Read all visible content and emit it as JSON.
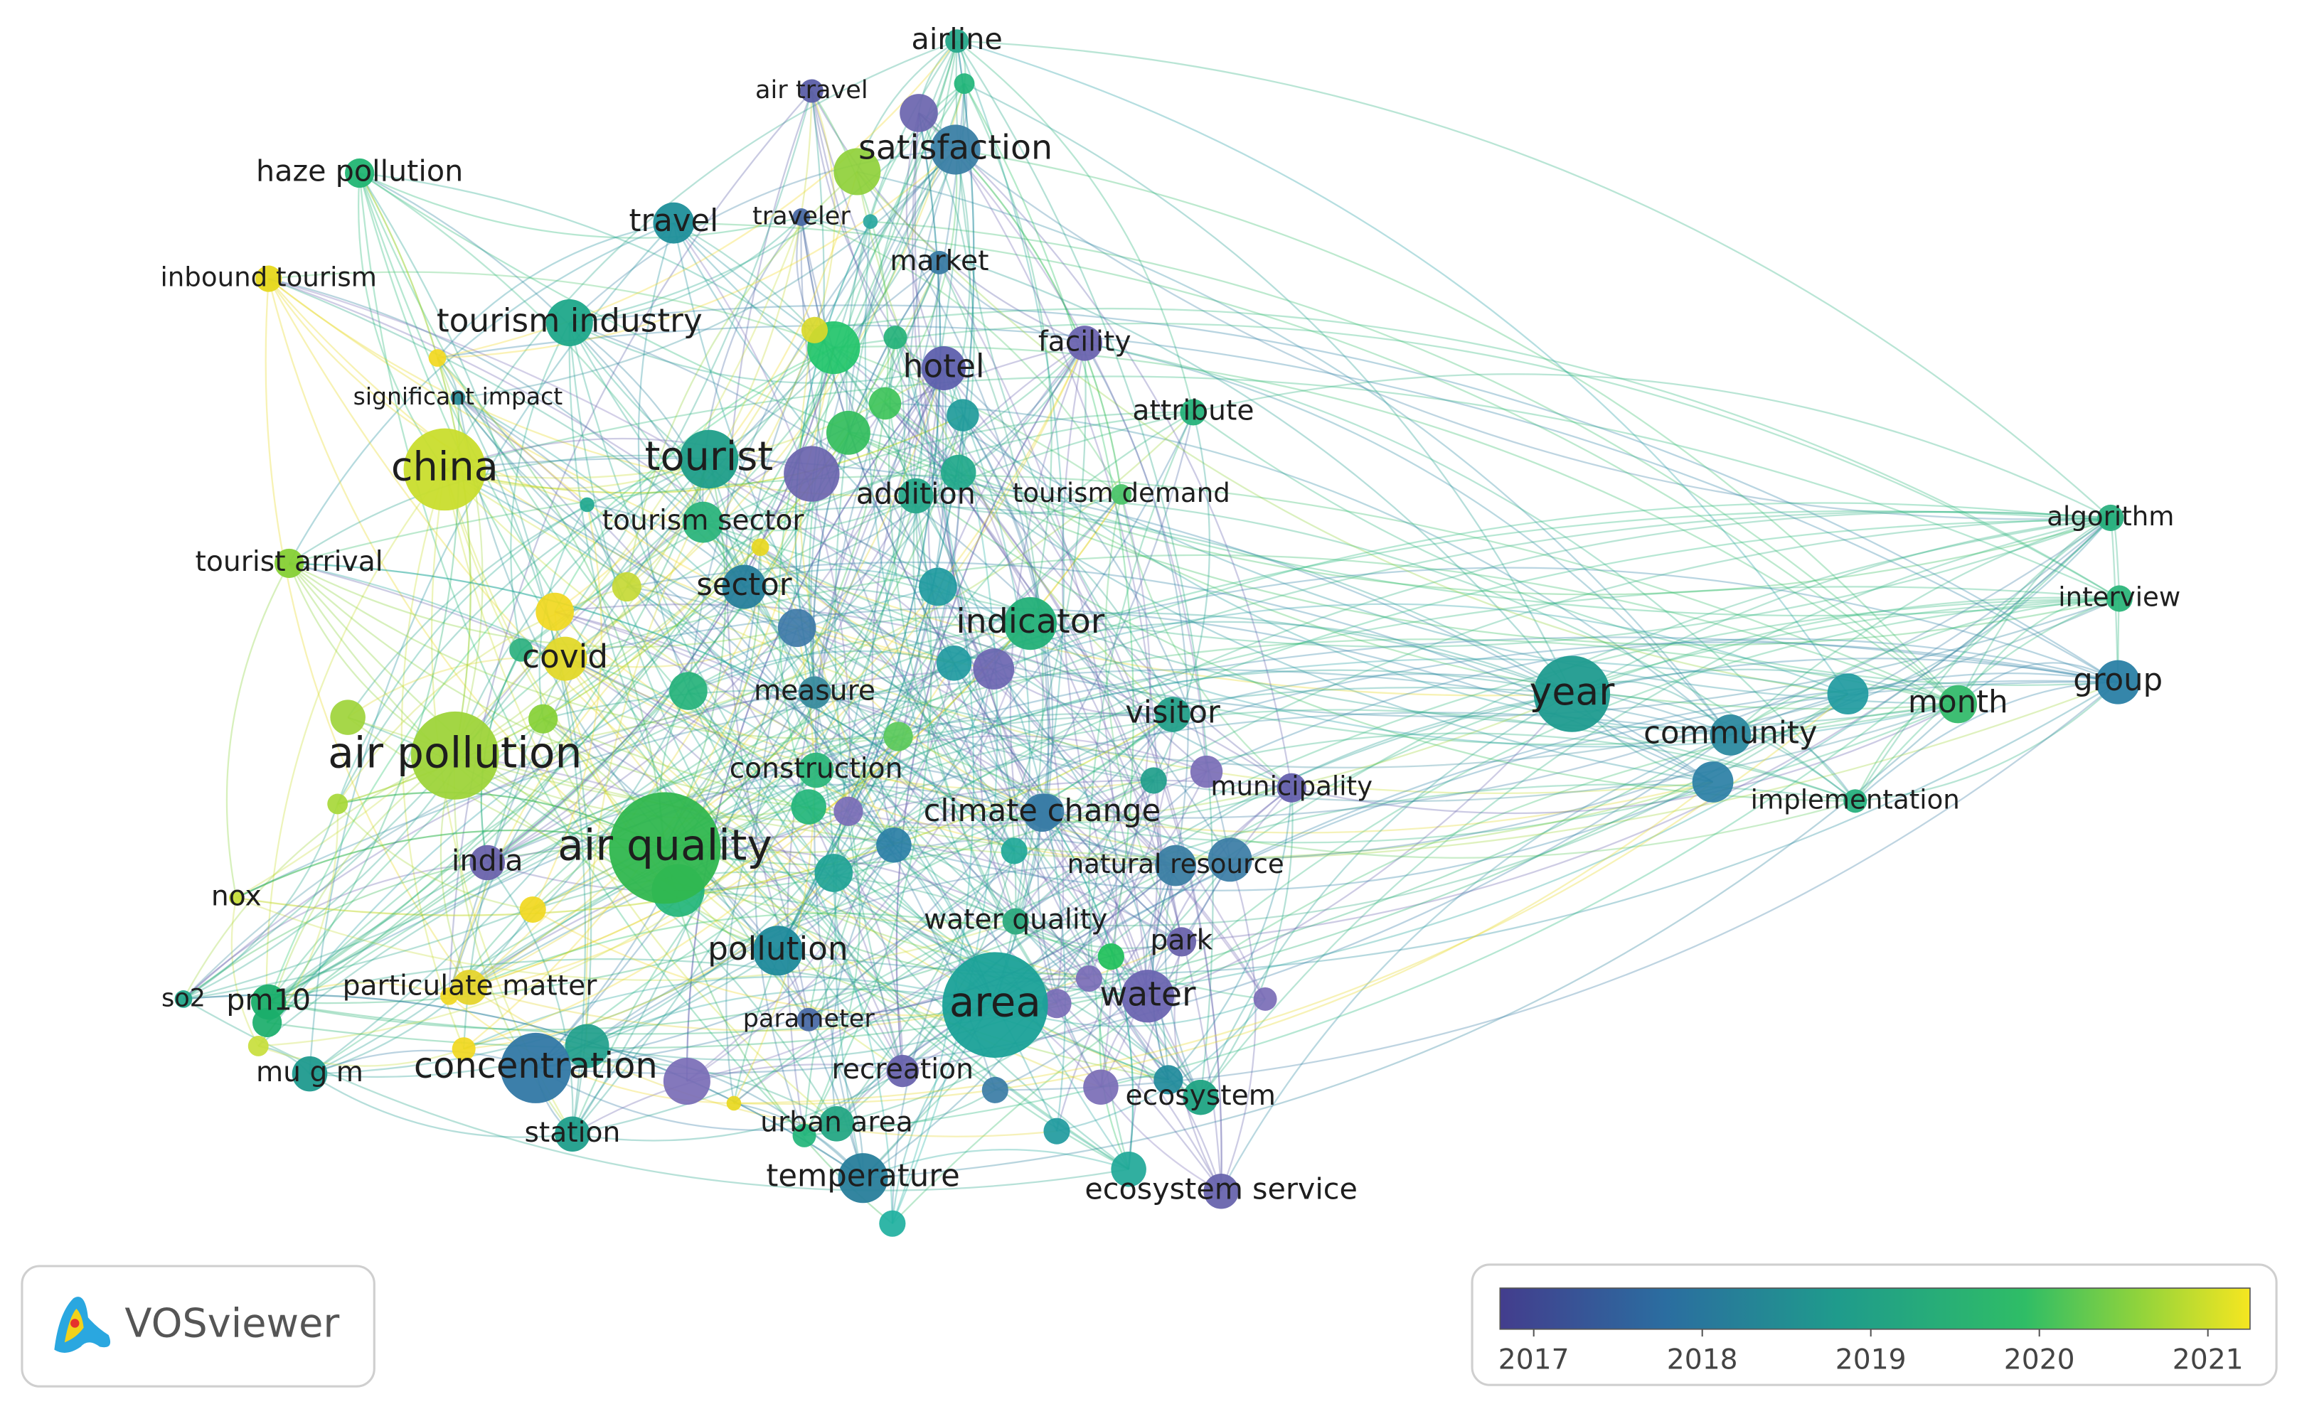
{
  "nodes": [
    {
      "label": "airline",
      "color": "#26a88a"
    },
    {
      "label": "air travel",
      "color": "#5b5ea6"
    },
    {
      "label": "satisfaction",
      "color": "#3b7fa5"
    },
    {
      "label": "haze pollution",
      "color": "#22b573"
    },
    {
      "label": "travel",
      "color": "#1f8f9a"
    },
    {
      "label": "traveler",
      "color": "#4a6aa5"
    },
    {
      "label": "market",
      "color": "#3a7ba3"
    },
    {
      "label": "inbound tourism",
      "color": "#e6d81c"
    },
    {
      "label": "tourism industry",
      "color": "#1fa88a"
    },
    {
      "label": "facility",
      "color": "#6b64b0"
    },
    {
      "label": "hotel",
      "color": "#5e60ad"
    },
    {
      "label": "significant impact",
      "color": "#2a8c98"
    },
    {
      "label": "attribute",
      "color": "#26b27a"
    },
    {
      "label": "china",
      "color": "#c9dd2d"
    },
    {
      "label": "tourist",
      "color": "#1f9e89"
    },
    {
      "label": "addition",
      "color": "#27a88a"
    },
    {
      "label": "tourism demand",
      "color": "#4cc46a"
    },
    {
      "label": "tourism sector",
      "color": "#2cb47c"
    },
    {
      "label": "algorithm",
      "color": "#2bb07f"
    },
    {
      "label": "tourist arrival",
      "color": "#86d035"
    },
    {
      "label": "sector",
      "color": "#277f9b"
    },
    {
      "label": "interview",
      "color": "#2cb57a"
    },
    {
      "label": "indicator",
      "color": "#23b078"
    },
    {
      "label": "covid",
      "color": "#e2d82a"
    },
    {
      "label": "group",
      "color": "#2a7fa5"
    },
    {
      "label": "year",
      "color": "#1f9b8f"
    },
    {
      "label": "month",
      "color": "#34bb6b"
    },
    {
      "label": "measure",
      "color": "#3a8c9e"
    },
    {
      "label": "visitor",
      "color": "#24a08a"
    },
    {
      "label": "community",
      "color": "#2c8aa0"
    },
    {
      "label": "air pollution",
      "color": "#9ed43a"
    },
    {
      "label": "construction",
      "color": "#2db67b"
    },
    {
      "label": "municipality",
      "color": "#6560ad"
    },
    {
      "label": "implementation",
      "color": "#27b07e"
    },
    {
      "label": "climate change",
      "color": "#3a7ca5"
    },
    {
      "label": "air quality",
      "color": "#30b74f"
    },
    {
      "label": "india",
      "color": "#6a63ac"
    },
    {
      "label": "natural resource",
      "color": "#3b7ea3"
    },
    {
      "label": "nox",
      "color": "#c8de3c"
    },
    {
      "label": "water quality",
      "color": "#2eab80"
    },
    {
      "label": "park",
      "color": "#6a63ac"
    },
    {
      "label": "pollution",
      "color": "#1f8a9b"
    },
    {
      "label": "area",
      "color": "#1aa198"
    },
    {
      "label": "water",
      "color": "#6c65b1"
    },
    {
      "label": "so2",
      "color": "#25a58a"
    },
    {
      "label": "pm10",
      "color": "#1aae6a"
    },
    {
      "label": "particulate matter",
      "color": "#e5d42c"
    },
    {
      "label": "parameter",
      "color": "#4b6ba6"
    },
    {
      "label": "mu g m",
      "color": "#1f9a8e"
    },
    {
      "label": "concentration",
      "color": "#3278a5"
    },
    {
      "label": "recreation",
      "color": "#6a64ae"
    },
    {
      "label": "ecosystem",
      "color": "#1fa383"
    },
    {
      "label": "station",
      "color": "#1f9e8b"
    },
    {
      "label": "urban area",
      "color": "#25a684"
    },
    {
      "label": "temperature",
      "color": "#287e9b"
    },
    {
      "label": "ecosystem service",
      "color": "#6864ad"
    }
  ],
  "logo": {
    "text": "VOSviewer"
  },
  "legend": {
    "ticks": [
      2017,
      2018,
      2019,
      2020,
      2021
    ],
    "range": [
      2016.8,
      2021.25
    ]
  }
}
